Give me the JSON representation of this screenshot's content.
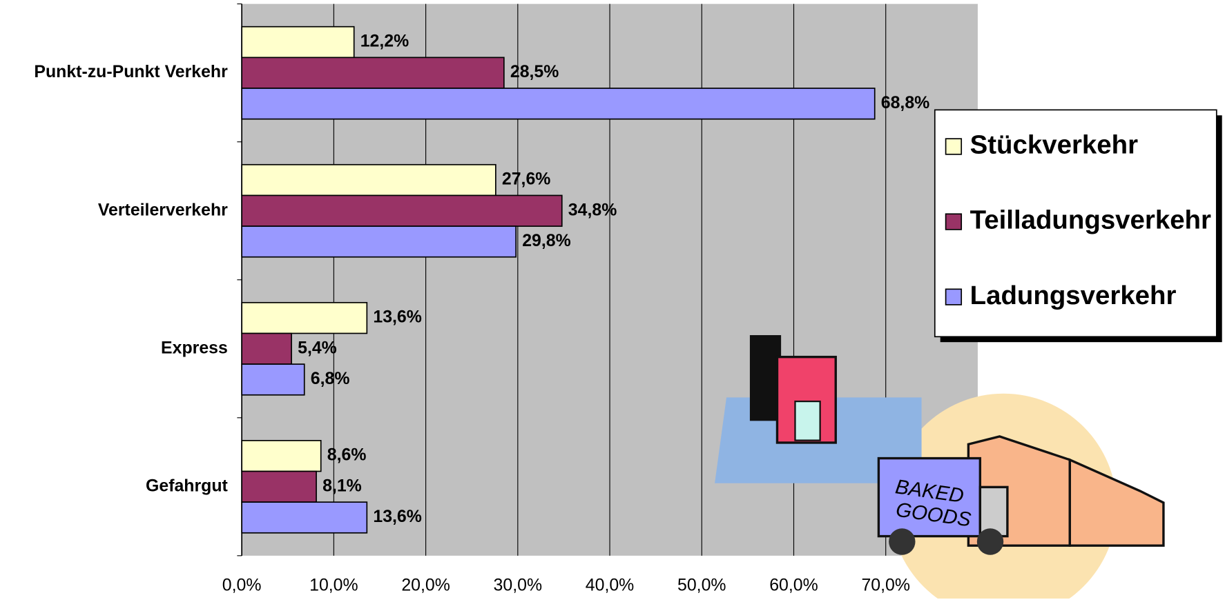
{
  "chart_data": {
    "type": "hbar",
    "categories": [
      "Punkt-zu-Punkt Verkehr",
      "Verteilerverkehr",
      "Express",
      "Gefahrgut"
    ],
    "series": [
      {
        "name": "Stückverkehr",
        "color": "#FFFFCC",
        "values": [
          12.2,
          27.6,
          13.6,
          8.6
        ],
        "value_labels": [
          "12,2%",
          "27,6%",
          "13,6%",
          "8,6%"
        ]
      },
      {
        "name": "Teilladungsverkehr",
        "color": "#993366",
        "values": [
          28.5,
          34.8,
          5.4,
          8.1
        ],
        "value_labels": [
          "28,5%",
          "34,8%",
          "5,4%",
          "8,1%"
        ]
      },
      {
        "name": "Ladungsverkehr",
        "color": "#9999FF",
        "values": [
          68.8,
          29.8,
          6.8,
          13.6
        ],
        "value_labels": [
          "68,8%",
          "29,8%",
          "6,8%",
          "13,6%"
        ]
      }
    ],
    "xlim": [
      0,
      80
    ],
    "xticks": [
      {
        "value": 0,
        "label": "0,0%"
      },
      {
        "value": 10,
        "label": "10,0%"
      },
      {
        "value": 20,
        "label": "20,0%"
      },
      {
        "value": 30,
        "label": "30,0%"
      },
      {
        "value": 40,
        "label": "40,0%"
      },
      {
        "value": 50,
        "label": "50,0%"
      },
      {
        "value": 60,
        "label": "60,0%"
      },
      {
        "value": 70,
        "label": "70,0%"
      }
    ],
    "grid": true,
    "legend": "right"
  }
}
